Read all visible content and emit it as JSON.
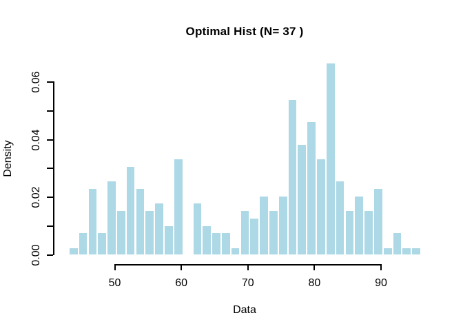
{
  "figure": {
    "title": "Optimal Hist (N= 37 )",
    "xlabel": "Data",
    "ylabel": "Density"
  },
  "chart_data": {
    "type": "bar",
    "subtype": "histogram",
    "title": "Optimal Hist (N= 37 )",
    "xlabel": "Data",
    "ylabel": "Density",
    "n_bins": 37,
    "bin_start": 43.1,
    "bin_width": 1.43,
    "densities": [
      0.0026,
      0.0077,
      0.0231,
      0.0077,
      0.0257,
      0.0154,
      0.0308,
      0.0231,
      0.0154,
      0.018,
      0.0103,
      0.0334,
      0,
      0.018,
      0.0103,
      0.0077,
      0.0077,
      0.0026,
      0.0154,
      0.0129,
      0.0206,
      0.0154,
      0.0206,
      0.054,
      0.0386,
      0.0463,
      0.0334,
      0.0668,
      0.0257,
      0.0154,
      0.0206,
      0.0154,
      0.0231,
      0.0026,
      0.0077,
      0.0026,
      0.0026
    ],
    "x_ticks": [
      50,
      60,
      70,
      80,
      90
    ],
    "x_tick_labels": [
      "50",
      "60",
      "70",
      "80",
      "90"
    ],
    "y_ticks": [
      0,
      0.01,
      0.02,
      0.03,
      0.04,
      0.05,
      0.06
    ],
    "y_tick_labels": [
      "0.00",
      "",
      "0.02",
      "",
      "0.04",
      "",
      "0.06"
    ],
    "xlim": [
      40.9,
      98.2
    ],
    "ylim": [
      -0.0028,
      0.0694
    ],
    "grid": false,
    "legend": null,
    "bar_color": "#ADD8E6",
    "bar_border_color": "#FFFFFF",
    "axis_color": "#000000",
    "background_color": "#FFFFFF"
  }
}
